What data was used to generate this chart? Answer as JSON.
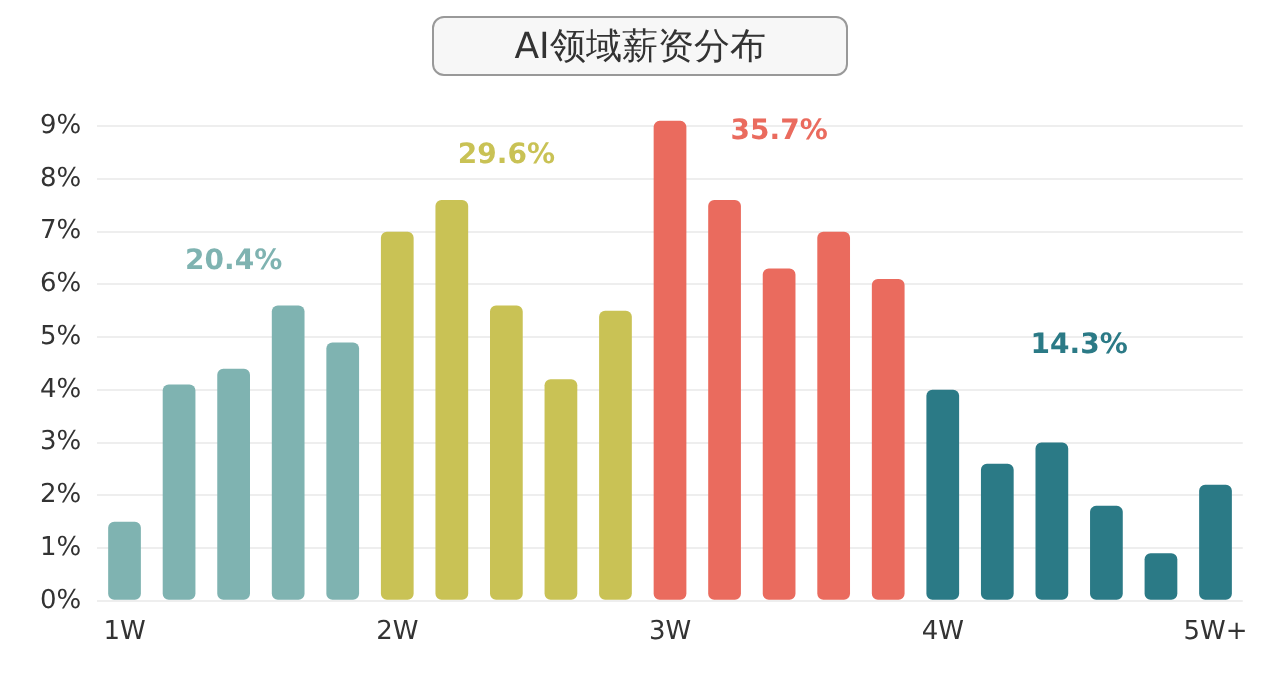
{
  "chart_data": {
    "type": "bar",
    "title": "AI领域薪资分布",
    "categories": [
      "1W",
      null,
      null,
      null,
      null,
      "2W",
      null,
      null,
      null,
      null,
      "3W",
      null,
      null,
      null,
      null,
      "4W",
      null,
      null,
      null,
      null,
      "5W+"
    ],
    "series": [
      {
        "color": "#7fb3b1",
        "values": [
          1.5,
          4.1,
          4.4,
          5.6,
          4.9,
          null,
          null,
          null,
          null,
          null,
          null,
          null,
          null,
          null,
          null,
          null,
          null,
          null,
          null,
          null,
          null
        ]
      },
      {
        "color": "#c9c255",
        "values": [
          null,
          null,
          null,
          null,
          null,
          7.0,
          7.6,
          5.6,
          4.2,
          5.5,
          null,
          null,
          null,
          null,
          null,
          null,
          null,
          null,
          null,
          null,
          null
        ]
      },
      {
        "color": "#ea6b5e",
        "values": [
          null,
          null,
          null,
          null,
          null,
          null,
          null,
          null,
          null,
          null,
          9.1,
          7.6,
          6.3,
          7.0,
          6.1,
          null,
          null,
          null,
          null,
          null,
          null
        ]
      },
      {
        "color": "#2b7a86",
        "values": [
          null,
          null,
          null,
          null,
          null,
          null,
          null,
          null,
          null,
          null,
          null,
          null,
          null,
          null,
          null,
          4.0,
          2.6,
          3.0,
          1.8,
          0.9,
          2.2
        ]
      }
    ],
    "annotations": [
      "20.4%",
      "29.6%",
      "35.7%",
      "14.3%"
    ],
    "ylim": [
      0,
      9.2
    ],
    "yticks": [
      {
        "value": 0,
        "label": "0%"
      },
      {
        "value": 1,
        "label": "1%"
      },
      {
        "value": 2,
        "label": "2%"
      },
      {
        "value": 3,
        "label": "3%"
      },
      {
        "value": 4,
        "label": "4%"
      },
      {
        "value": 5,
        "label": "5%"
      },
      {
        "value": 6,
        "label": "6%"
      },
      {
        "value": 7,
        "label": "7%"
      },
      {
        "value": 8,
        "label": "8%"
      },
      {
        "value": 9,
        "label": "9%"
      }
    ],
    "grid": "y"
  }
}
